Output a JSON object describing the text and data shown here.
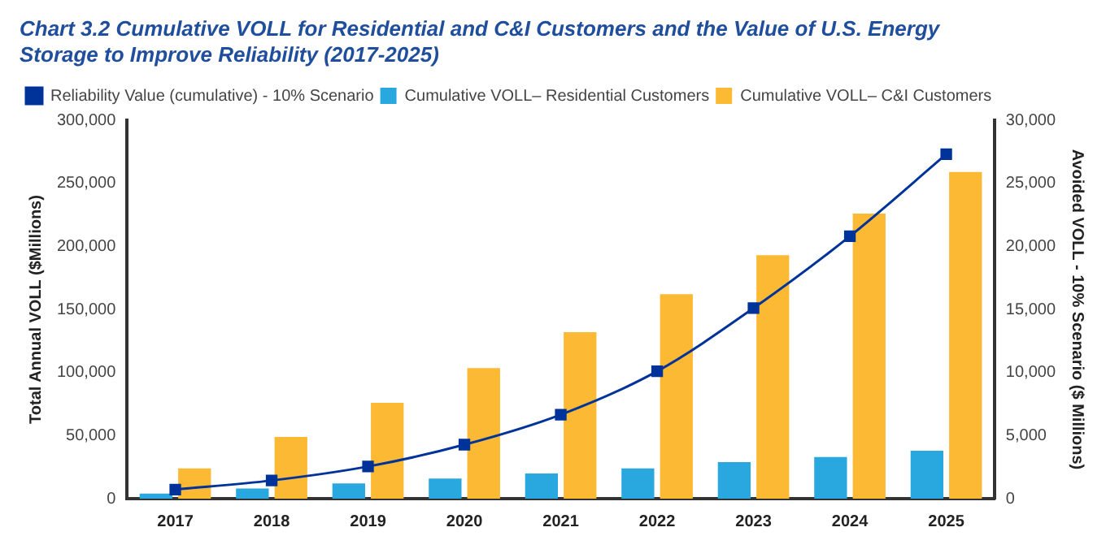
{
  "chart_data": {
    "type": "bar",
    "title": "Chart 3.2   Cumulative VOLL for Residential and C&I Customers and the Value of U.S. Energy Storage to Improve Reliability (2017-2025)",
    "ylabel": "Total Annual VOLL ($Millions)",
    "y2label": "Avoided VOLL - 10% Scenario ($ Millions)",
    "categories": [
      "2017",
      "2018",
      "2019",
      "2020",
      "2021",
      "2022",
      "2023",
      "2024",
      "2025"
    ],
    "series": [
      {
        "name": "Cumulative VOLL– Residential Customers",
        "color": "#29a8e0",
        "values": [
          4000,
          8000,
          12000,
          16000,
          20000,
          24000,
          29000,
          33000,
          38000
        ]
      },
      {
        "name": "Cumulative VOLL– C&I Customers",
        "color": "#fbb934",
        "values": [
          24000,
          49000,
          76000,
          103500,
          132000,
          162000,
          193000,
          226000,
          259000
        ]
      },
      {
        "name": "Reliability Value (cumulative) - 10% Scenario",
        "type": "line",
        "axis": "y2",
        "color": "#003399",
        "marker": "square",
        "values": [
          720,
          1440,
          2550,
          4280,
          6660,
          10100,
          15100,
          20800,
          27300
        ]
      }
    ],
    "ylim": [
      0,
      300000
    ],
    "yticks": [
      {
        "value": 0,
        "label": "0"
      },
      {
        "value": 50000,
        "label": "50,000"
      },
      {
        "value": 100000,
        "label": "100,000"
      },
      {
        "value": 150000,
        "label": "150,000"
      },
      {
        "value": 200000,
        "label": "200,000"
      },
      {
        "value": 250000,
        "label": "250,000"
      },
      {
        "value": 300000,
        "label": "300,000"
      }
    ],
    "y2lim": [
      0,
      30000
    ],
    "y2ticks": [
      {
        "value": 0,
        "label": "0"
      },
      {
        "value": 5000,
        "label": "5,000"
      },
      {
        "value": 10000,
        "label": "10,000"
      },
      {
        "value": 15000,
        "label": "15,000"
      },
      {
        "value": 20000,
        "label": "20,000"
      },
      {
        "value": 25000,
        "label": "25,000"
      },
      {
        "value": 30000,
        "label": "30,000"
      }
    ],
    "grid": false,
    "legend": "top left"
  }
}
